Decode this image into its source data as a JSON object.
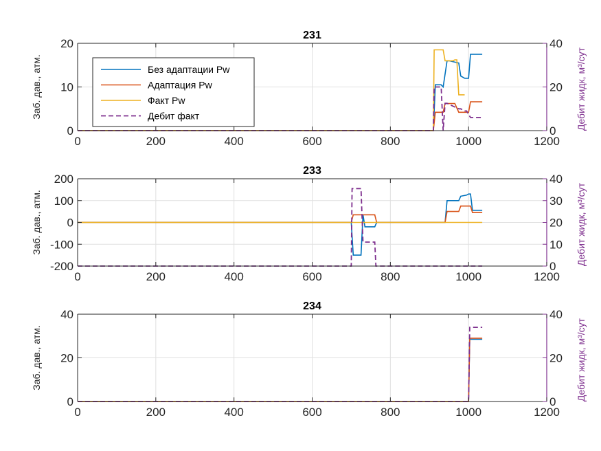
{
  "colors": {
    "series_blue": "#0072BD",
    "series_orange": "#D95319",
    "series_yellow": "#EDB120",
    "series_purple": "#7E2F8E",
    "axis": "#262626",
    "grid": "#dfdfdf"
  },
  "legend": {
    "placement": "top-left of first subplot",
    "entries": [
      "Без адаптации Pw",
      "Адаптация Pw",
      "Факт Pw",
      "Дебит факт"
    ]
  },
  "chart_data": [
    {
      "type": "line",
      "title": "231",
      "xlim": [
        0,
        1200
      ],
      "xticks": [
        0,
        200,
        400,
        600,
        800,
        1000,
        1200
      ],
      "ylabel": "Заб. дав., атм.",
      "ylim": [
        0,
        20
      ],
      "yticks": [
        0,
        10,
        20
      ],
      "ylabel_right": "Дебит жидк, м³/сут",
      "ylim_right": [
        0,
        40
      ],
      "yticks_right": [
        0,
        20,
        40
      ],
      "grid": true,
      "series": [
        {
          "name": "Без адаптации Pw",
          "axis": "left",
          "x": [
            0,
            910,
            915,
            930,
            935,
            945,
            950,
            975,
            980,
            990,
            1000,
            1005,
            1035
          ],
          "y": [
            0,
            0,
            10.5,
            10.5,
            10,
            16,
            16,
            15.5,
            12.5,
            12,
            12,
            17.5,
            17.5
          ]
        },
        {
          "name": "Адаптация Pw",
          "axis": "left",
          "x": [
            0,
            910,
            915,
            935,
            940,
            945,
            965,
            975,
            990,
            1000,
            1005,
            1035
          ],
          "y": [
            0,
            0,
            4.2,
            4.2,
            6.2,
            6.2,
            6.2,
            4.2,
            4.2,
            4.2,
            6.6,
            6.6
          ]
        },
        {
          "name": "Факт Pw",
          "axis": "left",
          "x": [
            0,
            910,
            912,
            935,
            940,
            960,
            965,
            970,
            975,
            990
          ],
          "y": [
            0,
            0,
            18.5,
            18.5,
            16,
            16,
            16.2,
            16.2,
            8.2,
            8.2
          ]
        },
        {
          "name": "Дебит факт",
          "axis": "right",
          "x": [
            0,
            910,
            912,
            930,
            935,
            940,
            945,
            975,
            980,
            990,
            995,
            1005,
            1010,
            1035
          ],
          "y": [
            0,
            0,
            20,
            20,
            0,
            12.5,
            12.5,
            10,
            10,
            9,
            9,
            6,
            6,
            6
          ]
        }
      ]
    },
    {
      "type": "line",
      "title": "233",
      "xlim": [
        0,
        1200
      ],
      "xticks": [
        0,
        200,
        400,
        600,
        800,
        1000,
        1200
      ],
      "ylabel": "Заб. дав., атм.",
      "ylim": [
        -200,
        200
      ],
      "yticks": [
        -200,
        -100,
        0,
        100,
        200
      ],
      "ylabel_right": "Дебит жидк, м³/сут",
      "ylim_right": [
        0,
        40
      ],
      "yticks_right": [
        0,
        10,
        20,
        30,
        40
      ],
      "grid": true,
      "series": [
        {
          "name": "Без адаптации Pw",
          "axis": "left",
          "x": [
            0,
            700,
            705,
            708,
            725,
            730,
            735,
            760,
            765,
            940,
            945,
            975,
            980,
            995,
            1000,
            1005,
            1010,
            1035
          ],
          "y": [
            0,
            0,
            -150,
            -150,
            -150,
            35,
            -20,
            -20,
            0,
            0,
            100,
            100,
            120,
            125,
            130,
            130,
            55,
            55
          ]
        },
        {
          "name": "Адаптация Pw",
          "axis": "left",
          "x": [
            0,
            700,
            705,
            760,
            765,
            940,
            945,
            975,
            980,
            1005,
            1010,
            1035
          ],
          "y": [
            0,
            0,
            35,
            35,
            0,
            0,
            50,
            50,
            75,
            75,
            45,
            45
          ]
        },
        {
          "name": "Факт Pw",
          "axis": "left",
          "x": [
            0,
            1035
          ],
          "y": [
            0,
            0
          ]
        },
        {
          "name": "Дебит факт",
          "axis": "right",
          "x": [
            0,
            700,
            702,
            705,
            725,
            728,
            730,
            742,
            745,
            760,
            763,
            1035
          ],
          "y": [
            0,
            0,
            35.5,
            35.5,
            35.5,
            20,
            11,
            11,
            11,
            11,
            0,
            0
          ]
        }
      ]
    },
    {
      "type": "line",
      "title": "234",
      "xlim": [
        0,
        1200
      ],
      "xticks": [
        0,
        200,
        400,
        600,
        800,
        1000,
        1200
      ],
      "ylabel": "Заб. дав., атм.",
      "ylim": [
        0,
        40
      ],
      "yticks": [
        0,
        20,
        40
      ],
      "ylabel_right": "Дебит жидк, м³/сут",
      "ylim_right": [
        0,
        40
      ],
      "yticks_right": [
        0,
        20,
        40
      ],
      "grid": true,
      "series": [
        {
          "name": "Без адаптации Pw",
          "axis": "left",
          "x": [
            0,
            1000,
            1003,
            1035
          ],
          "y": [
            0,
            0,
            28.5,
            28.5
          ]
        },
        {
          "name": "Адаптация Pw",
          "axis": "left",
          "x": [
            0,
            1000,
            1003,
            1035
          ],
          "y": [
            0,
            0,
            29,
            29
          ]
        },
        {
          "name": "Факт Pw",
          "axis": "left",
          "x": [
            0,
            1000
          ],
          "y": [
            0,
            0
          ]
        },
        {
          "name": "Дебит факт",
          "axis": "right",
          "x": [
            0,
            1000,
            1003,
            1035
          ],
          "y": [
            0,
            0,
            34,
            34
          ]
        }
      ]
    }
  ]
}
